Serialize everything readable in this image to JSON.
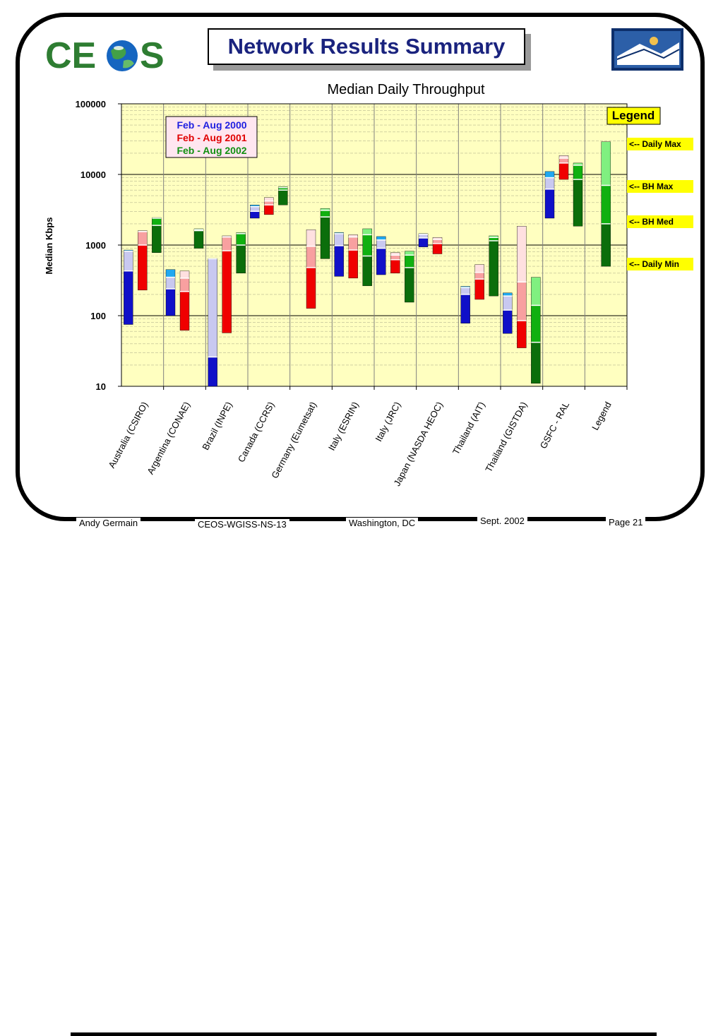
{
  "header": {
    "logo_text": "CEOS",
    "title": "Network Results Summary"
  },
  "footer": {
    "author": "Andy Germain",
    "doc_id": "CEOS-WGISS-NS-13",
    "location": "Washington, DC",
    "date": "Sept. 2002",
    "page": "Page 21"
  },
  "colors": {
    "title_text": "#1a237e",
    "plot_bg": "#ffffc0",
    "y2000_dark": "#1010c8",
    "y2000_light": "#c8c8f0",
    "y2000_top": "#20a8f0",
    "y2001_dark": "#f00000",
    "y2001_light": "#f8a0a0",
    "y2001_top": "#ffe0e0",
    "y2002_dark": "#0b6e0b",
    "y2002_mid": "#10b010",
    "y2002_light": "#80f080",
    "callout_bg": "#ffff00"
  },
  "chart_data": {
    "type": "bar",
    "subtype": "floating range bars (daily min / BH median / BH max / daily max)",
    "title": "Median Daily Throughput",
    "ylabel": "Median Kbps",
    "xlabel": "",
    "yscale": "log",
    "ylim": [
      10,
      100000
    ],
    "yticks": [
      10,
      100,
      1000,
      10000,
      100000
    ],
    "ytick_labels": [
      "10",
      "100",
      "1000",
      "10000",
      "100000"
    ],
    "grid": true,
    "categories": [
      "Australia (CSIRO)",
      "Argentina (CONAE)",
      "Brazil (INPE)",
      "Canada (CCRS)",
      "Germany (Eumetsat)",
      "Italy (ESRIN)",
      "Italy (JRC)",
      "Japan (NASDA HEOC)",
      "Thailand (AIT)",
      "Thailand (GISTDA)",
      "GSFC - RAL",
      "Legend"
    ],
    "legend": {
      "placement": "top-left",
      "entries": [
        "Feb - Aug 2000",
        "Feb - Aug 2001",
        "Feb - Aug 2002"
      ],
      "colors": [
        "#2020e0",
        "#e00000",
        "#109010"
      ]
    },
    "legend_key": {
      "title": "Legend",
      "labels": [
        "<-- Daily Max",
        "<-- BH Max",
        "<-- BH Med",
        "<-- Daily Min"
      ]
    },
    "series": [
      {
        "name": "Feb - Aug 2000",
        "values": [
          {
            "min": 75,
            "med": 430,
            "bhmax": 820,
            "max": 850
          },
          {
            "min": 100,
            "med": 240,
            "bhmax": 350,
            "max": 450
          },
          {
            "min": 10,
            "med": 26,
            "bhmax": 640,
            "max": 650
          },
          {
            "min": 2400,
            "med": 3000,
            "bhmax": 3500,
            "max": 3700
          },
          null,
          {
            "min": 360,
            "med": 980,
            "bhmax": 1450,
            "max": 1500
          },
          {
            "min": 380,
            "med": 900,
            "bhmax": 1180,
            "max": 1320
          },
          {
            "min": 940,
            "med": 1260,
            "bhmax": 1420,
            "max": 1450
          },
          {
            "min": 78,
            "med": 200,
            "bhmax": 250,
            "max": 260
          },
          {
            "min": 56,
            "med": 120,
            "bhmax": 190,
            "max": 210
          },
          {
            "min": 2400,
            "med": 6200,
            "bhmax": 9000,
            "max": 11000
          },
          null
        ]
      },
      {
        "name": "Feb - Aug 2001",
        "values": [
          {
            "min": 230,
            "med": 1000,
            "bhmax": 1550,
            "max": 1600
          },
          {
            "min": 62,
            "med": 220,
            "bhmax": 340,
            "max": 430
          },
          {
            "min": 57,
            "med": 830,
            "bhmax": 1300,
            "max": 1350
          },
          {
            "min": 2700,
            "med": 3700,
            "bhmax": 4200,
            "max": 4700
          },
          {
            "min": 127,
            "med": 480,
            "bhmax": 960,
            "max": 1650
          },
          {
            "min": 340,
            "med": 850,
            "bhmax": 1300,
            "max": 1400
          },
          {
            "min": 400,
            "med": 620,
            "bhmax": 720,
            "max": 780
          },
          {
            "min": 750,
            "med": 1050,
            "bhmax": 1200,
            "max": 1280
          },
          {
            "min": 170,
            "med": 330,
            "bhmax": 410,
            "max": 530
          },
          {
            "min": 35,
            "med": 85,
            "bhmax": 300,
            "max": 1850
          },
          {
            "min": 8500,
            "med": 14500,
            "bhmax": 17000,
            "max": 18500
          },
          null
        ]
      },
      {
        "name": "Feb - Aug 2002",
        "values": [
          {
            "min": 780,
            "med": 1900,
            "bhmax": 2400,
            "max": 2450
          },
          {
            "min": 900,
            "med": 1600,
            "bhmax": 1650,
            "max": 1700
          },
          {
            "min": 400,
            "med": 1000,
            "bhmax": 1450,
            "max": 1500
          },
          {
            "min": 3700,
            "med": 6000,
            "bhmax": 6500,
            "max": 6700
          },
          {
            "min": 640,
            "med": 2500,
            "bhmax": 3100,
            "max": 3300
          },
          {
            "min": 265,
            "med": 700,
            "bhmax": 1400,
            "max": 1700
          },
          {
            "min": 155,
            "med": 480,
            "bhmax": 720,
            "max": 820
          },
          null,
          {
            "min": 190,
            "med": 1150,
            "bhmax": 1280,
            "max": 1350
          },
          {
            "min": 11,
            "med": 42,
            "bhmax": 140,
            "max": 350
          },
          {
            "min": 1850,
            "med": 8500,
            "bhmax": 13500,
            "max": 14500
          },
          {
            "min": 500,
            "med": 2000,
            "bhmax": 7000,
            "max": 29000
          }
        ]
      }
    ]
  }
}
